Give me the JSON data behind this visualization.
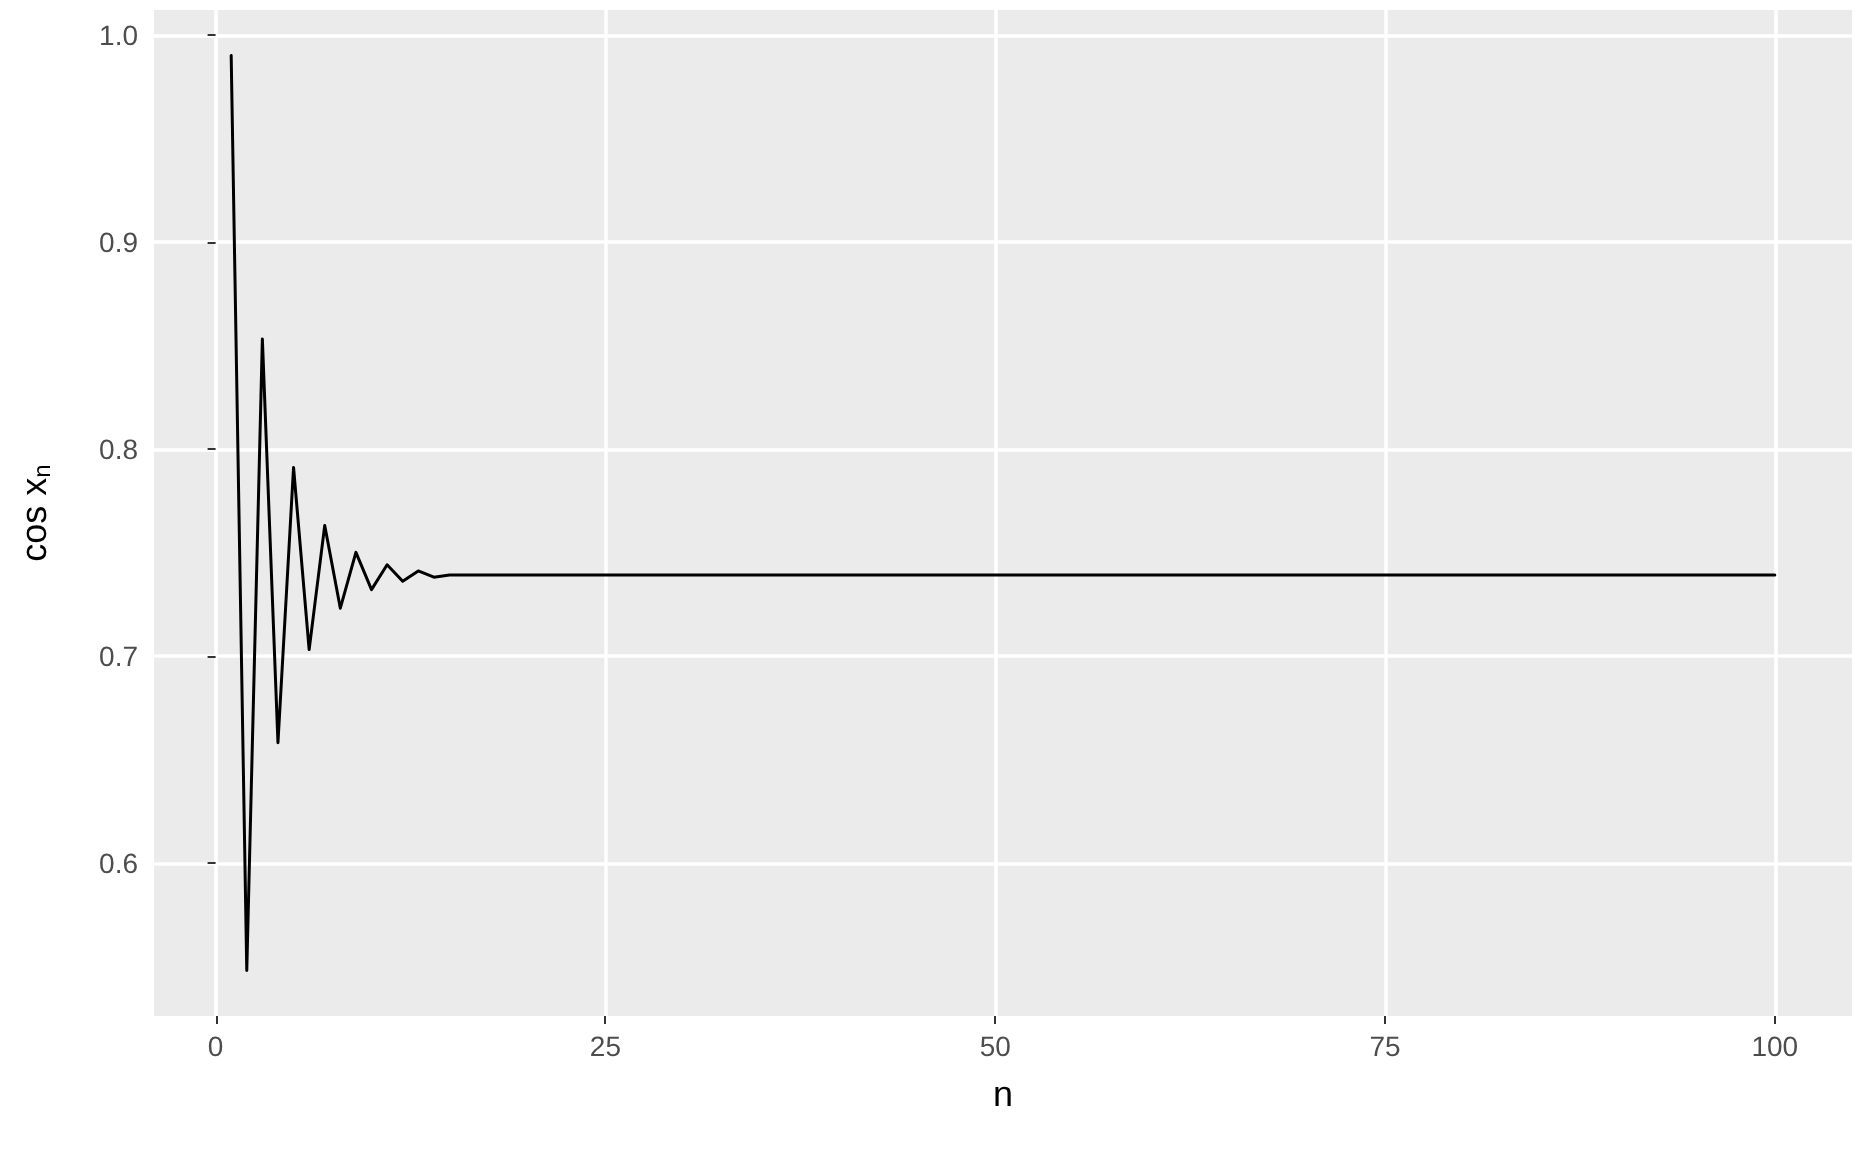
{
  "chart_data": {
    "type": "line",
    "xlabel": "n",
    "ylabel": "cos x$_{n}$",
    "series": [
      {
        "color": "#000000",
        "x": [
          1,
          2,
          3,
          4,
          5,
          6,
          7,
          8,
          9,
          10,
          11,
          12,
          13,
          14,
          15,
          16,
          100
        ],
        "values": [
          0.99,
          0.548,
          0.853,
          0.658,
          0.791,
          0.703,
          0.763,
          0.723,
          0.75,
          0.732,
          0.744,
          0.736,
          0.741,
          0.738,
          0.739,
          0.739,
          0.739
        ]
      }
    ],
    "xlim": [
      -3.95,
      104.95
    ],
    "ylim": [
      0.526,
      1.012
    ],
    "xticks": [
      0,
      25,
      50,
      75,
      100
    ],
    "yticks": [
      0.6,
      0.7,
      0.8,
      0.9,
      {
        "value": 1,
        "label": "1.0"
      }
    ],
    "grid": true,
    "marker": "none",
    "line_style": "solid"
  }
}
